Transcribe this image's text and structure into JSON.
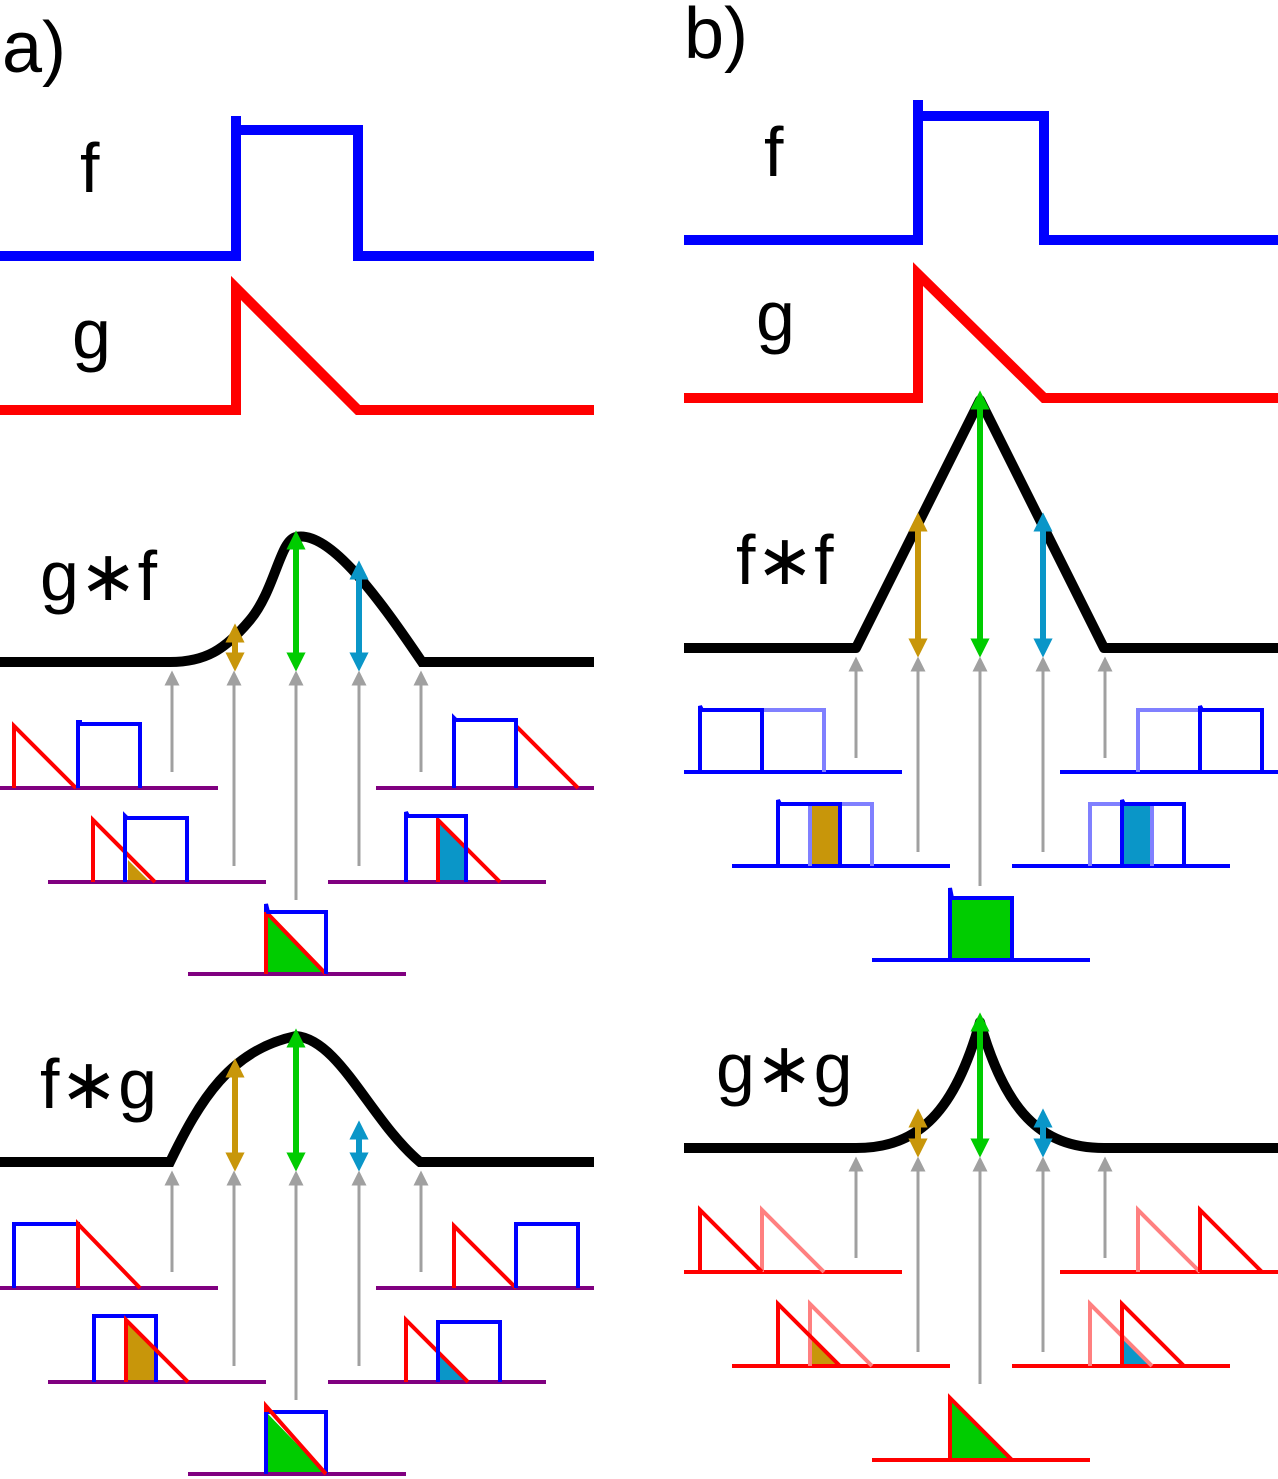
{
  "panels": {
    "a": {
      "label": "a)",
      "f_label": "f",
      "g_label": "g",
      "conv1_label": "g∗f",
      "conv2_label": "f∗g"
    },
    "b": {
      "label": "b)",
      "f_label": "f",
      "g_label": "g",
      "conv1_label": "f∗f",
      "conv2_label": "g∗g"
    }
  },
  "colors": {
    "f": "#0000ff",
    "g": "#ff0000",
    "result": "#000000",
    "overlap_purple": "#800080",
    "f_faded": "#8080ff",
    "g_faded": "#ff8080",
    "arrow_gold": "#c8960a",
    "arrow_green": "#00cc00",
    "arrow_cyan": "#0a96c8",
    "guide_gray": "#a0a0a0"
  }
}
